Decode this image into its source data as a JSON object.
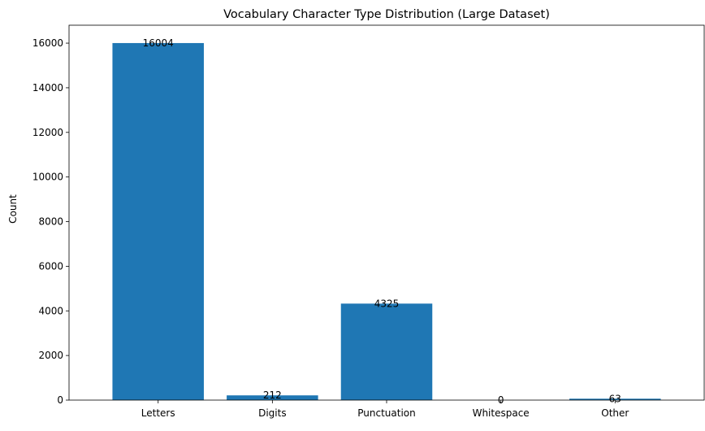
{
  "chart_data": {
    "type": "bar",
    "title": "Vocabulary Character Type Distribution (Large Dataset)",
    "xlabel": "",
    "ylabel": "Count",
    "categories": [
      "Letters",
      "Digits",
      "Punctuation",
      "Whitespace",
      "Other"
    ],
    "values": [
      16004,
      212,
      4325,
      0,
      63
    ],
    "data_labels": [
      "16004",
      "212",
      "4325",
      "0",
      "63"
    ],
    "ylim": [
      0,
      16804
    ],
    "yticks": [
      0,
      2000,
      4000,
      6000,
      8000,
      10000,
      12000,
      14000,
      16000
    ],
    "ytick_labels": [
      "0",
      "2000",
      "4000",
      "6000",
      "8000",
      "10000",
      "12000",
      "14000",
      "16000"
    ],
    "grid": false,
    "legend": "none",
    "bar_color": "#1f77b4"
  }
}
